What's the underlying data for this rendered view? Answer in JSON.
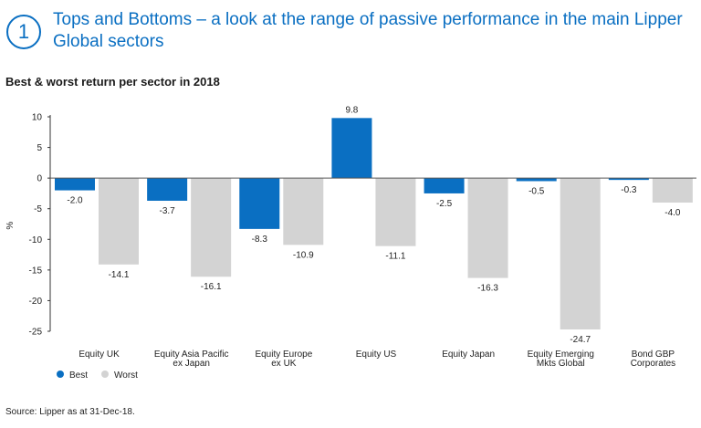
{
  "page": {
    "number": "1",
    "heading": "Tops and Bottoms – a look at the range of passive performance in the main Lipper Global sectors",
    "subheading": "Best & worst return per sector in 2018",
    "source": "Source: Lipper as at 31-Dec-18."
  },
  "chart_data": {
    "type": "bar",
    "ylabel": "%",
    "ylim": [
      -25,
      10
    ],
    "yticks": [
      10,
      5,
      0,
      -5,
      -10,
      -15,
      -20,
      -25
    ],
    "grid": false,
    "legend_position": "bottom-left",
    "categories": [
      [
        "Equity UK"
      ],
      [
        "Equity Asia Pacific",
        "ex Japan"
      ],
      [
        "Equity Europe",
        "ex UK"
      ],
      [
        "Equity US"
      ],
      [
        "Equity Japan"
      ],
      [
        "Equity Emerging",
        "Mkts Global"
      ],
      [
        "Bond GBP",
        "Corporates"
      ]
    ],
    "series": [
      {
        "name": "Best",
        "color": "#0a6fc2",
        "values": [
          -2.0,
          -3.7,
          -8.3,
          9.8,
          -2.5,
          -0.5,
          -0.3
        ]
      },
      {
        "name": "Worst",
        "color": "#d3d3d3",
        "values": [
          -14.1,
          -16.1,
          -10.9,
          -11.1,
          -16.3,
          -24.7,
          -4.0
        ]
      }
    ]
  }
}
